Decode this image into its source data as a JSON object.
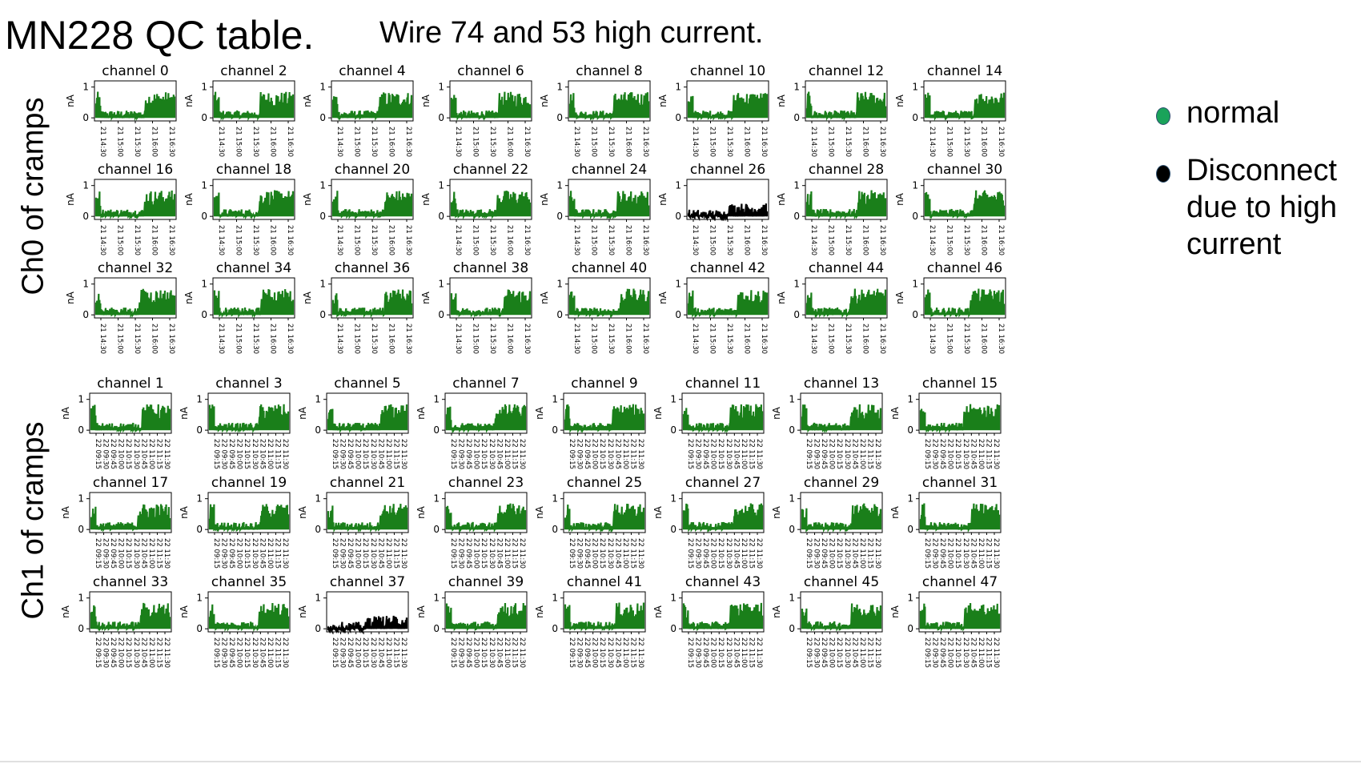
{
  "title": "MN228 QC table.",
  "subtitle": "Wire 74 and 53 high current.",
  "sections": [
    {
      "label": "Ch0 of cramps"
    },
    {
      "label": "Ch1 of cramps"
    }
  ],
  "legend": [
    {
      "label": "normal",
      "color": "#1aa35a"
    },
    {
      "label": "Disconnect due to high current",
      "color": "#000000"
    }
  ],
  "colors": {
    "normal": "#1a7f1a",
    "disconnect": "#000000"
  },
  "chart_data": {
    "type": "line",
    "ylabel": "nA",
    "yticks": [
      0,
      1
    ],
    "ylim": [
      -0.1,
      1.2
    ],
    "groups": [
      {
        "name": "Ch0 of cramps",
        "xticks": [
          "21 14:30",
          "21 15:00",
          "21 15:30",
          "21 16:00",
          "21 16:30"
        ],
        "rows": [
          [
            {
              "title": "channel 0",
              "status": "normal"
            },
            {
              "title": "channel 2",
              "status": "normal"
            },
            {
              "title": "channel 4",
              "status": "normal"
            },
            {
              "title": "channel 6",
              "status": "normal"
            },
            {
              "title": "channel 8",
              "status": "normal"
            },
            {
              "title": "channel 10",
              "status": "normal"
            },
            {
              "title": "channel 12",
              "status": "normal"
            },
            {
              "title": "channel 14",
              "status": "normal"
            }
          ],
          [
            {
              "title": "channel 16",
              "status": "normal"
            },
            {
              "title": "channel 18",
              "status": "normal"
            },
            {
              "title": "channel 20",
              "status": "normal"
            },
            {
              "title": "channel 22",
              "status": "normal"
            },
            {
              "title": "channel 24",
              "status": "normal"
            },
            {
              "title": "channel 26",
              "status": "disconnect"
            },
            {
              "title": "channel 28",
              "status": "normal"
            },
            {
              "title": "channel 30",
              "status": "normal"
            }
          ],
          [
            {
              "title": "channel 32",
              "status": "normal"
            },
            {
              "title": "channel 34",
              "status": "normal"
            },
            {
              "title": "channel 36",
              "status": "normal"
            },
            {
              "title": "channel 38",
              "status": "normal"
            },
            {
              "title": "channel 40",
              "status": "normal"
            },
            {
              "title": "channel 42",
              "status": "normal"
            },
            {
              "title": "channel 44",
              "status": "normal"
            },
            {
              "title": "channel 46",
              "status": "normal"
            }
          ]
        ]
      },
      {
        "name": "Ch1 of cramps",
        "xticks": [
          "22 09:15",
          "22 09:30",
          "22 09:45",
          "22 10:00",
          "22 10:15",
          "22 10:30",
          "22 10:45",
          "22 11:00",
          "22 11:15",
          "22 11:30"
        ],
        "rows": [
          [
            {
              "title": "channel 1",
              "status": "normal"
            },
            {
              "title": "channel 3",
              "status": "normal"
            },
            {
              "title": "channel 5",
              "status": "normal"
            },
            {
              "title": "channel 7",
              "status": "normal"
            },
            {
              "title": "channel 9",
              "status": "normal"
            },
            {
              "title": "channel 11",
              "status": "normal"
            },
            {
              "title": "channel 13",
              "status": "normal"
            },
            {
              "title": "channel 15",
              "status": "normal"
            }
          ],
          [
            {
              "title": "channel 17",
              "status": "normal"
            },
            {
              "title": "channel 19",
              "status": "normal"
            },
            {
              "title": "channel 21",
              "status": "normal"
            },
            {
              "title": "channel 23",
              "status": "normal"
            },
            {
              "title": "channel 25",
              "status": "normal"
            },
            {
              "title": "channel 27",
              "status": "normal"
            },
            {
              "title": "channel 29",
              "status": "normal"
            },
            {
              "title": "channel 31",
              "status": "normal"
            }
          ],
          [
            {
              "title": "channel 33",
              "status": "normal"
            },
            {
              "title": "channel 35",
              "status": "normal"
            },
            {
              "title": "channel 37",
              "status": "disconnect"
            },
            {
              "title": "channel 39",
              "status": "normal"
            },
            {
              "title": "channel 41",
              "status": "normal"
            },
            {
              "title": "channel 43",
              "status": "normal"
            },
            {
              "title": "channel 45",
              "status": "normal"
            },
            {
              "title": "channel 47",
              "status": "normal"
            }
          ]
        ]
      }
    ]
  }
}
